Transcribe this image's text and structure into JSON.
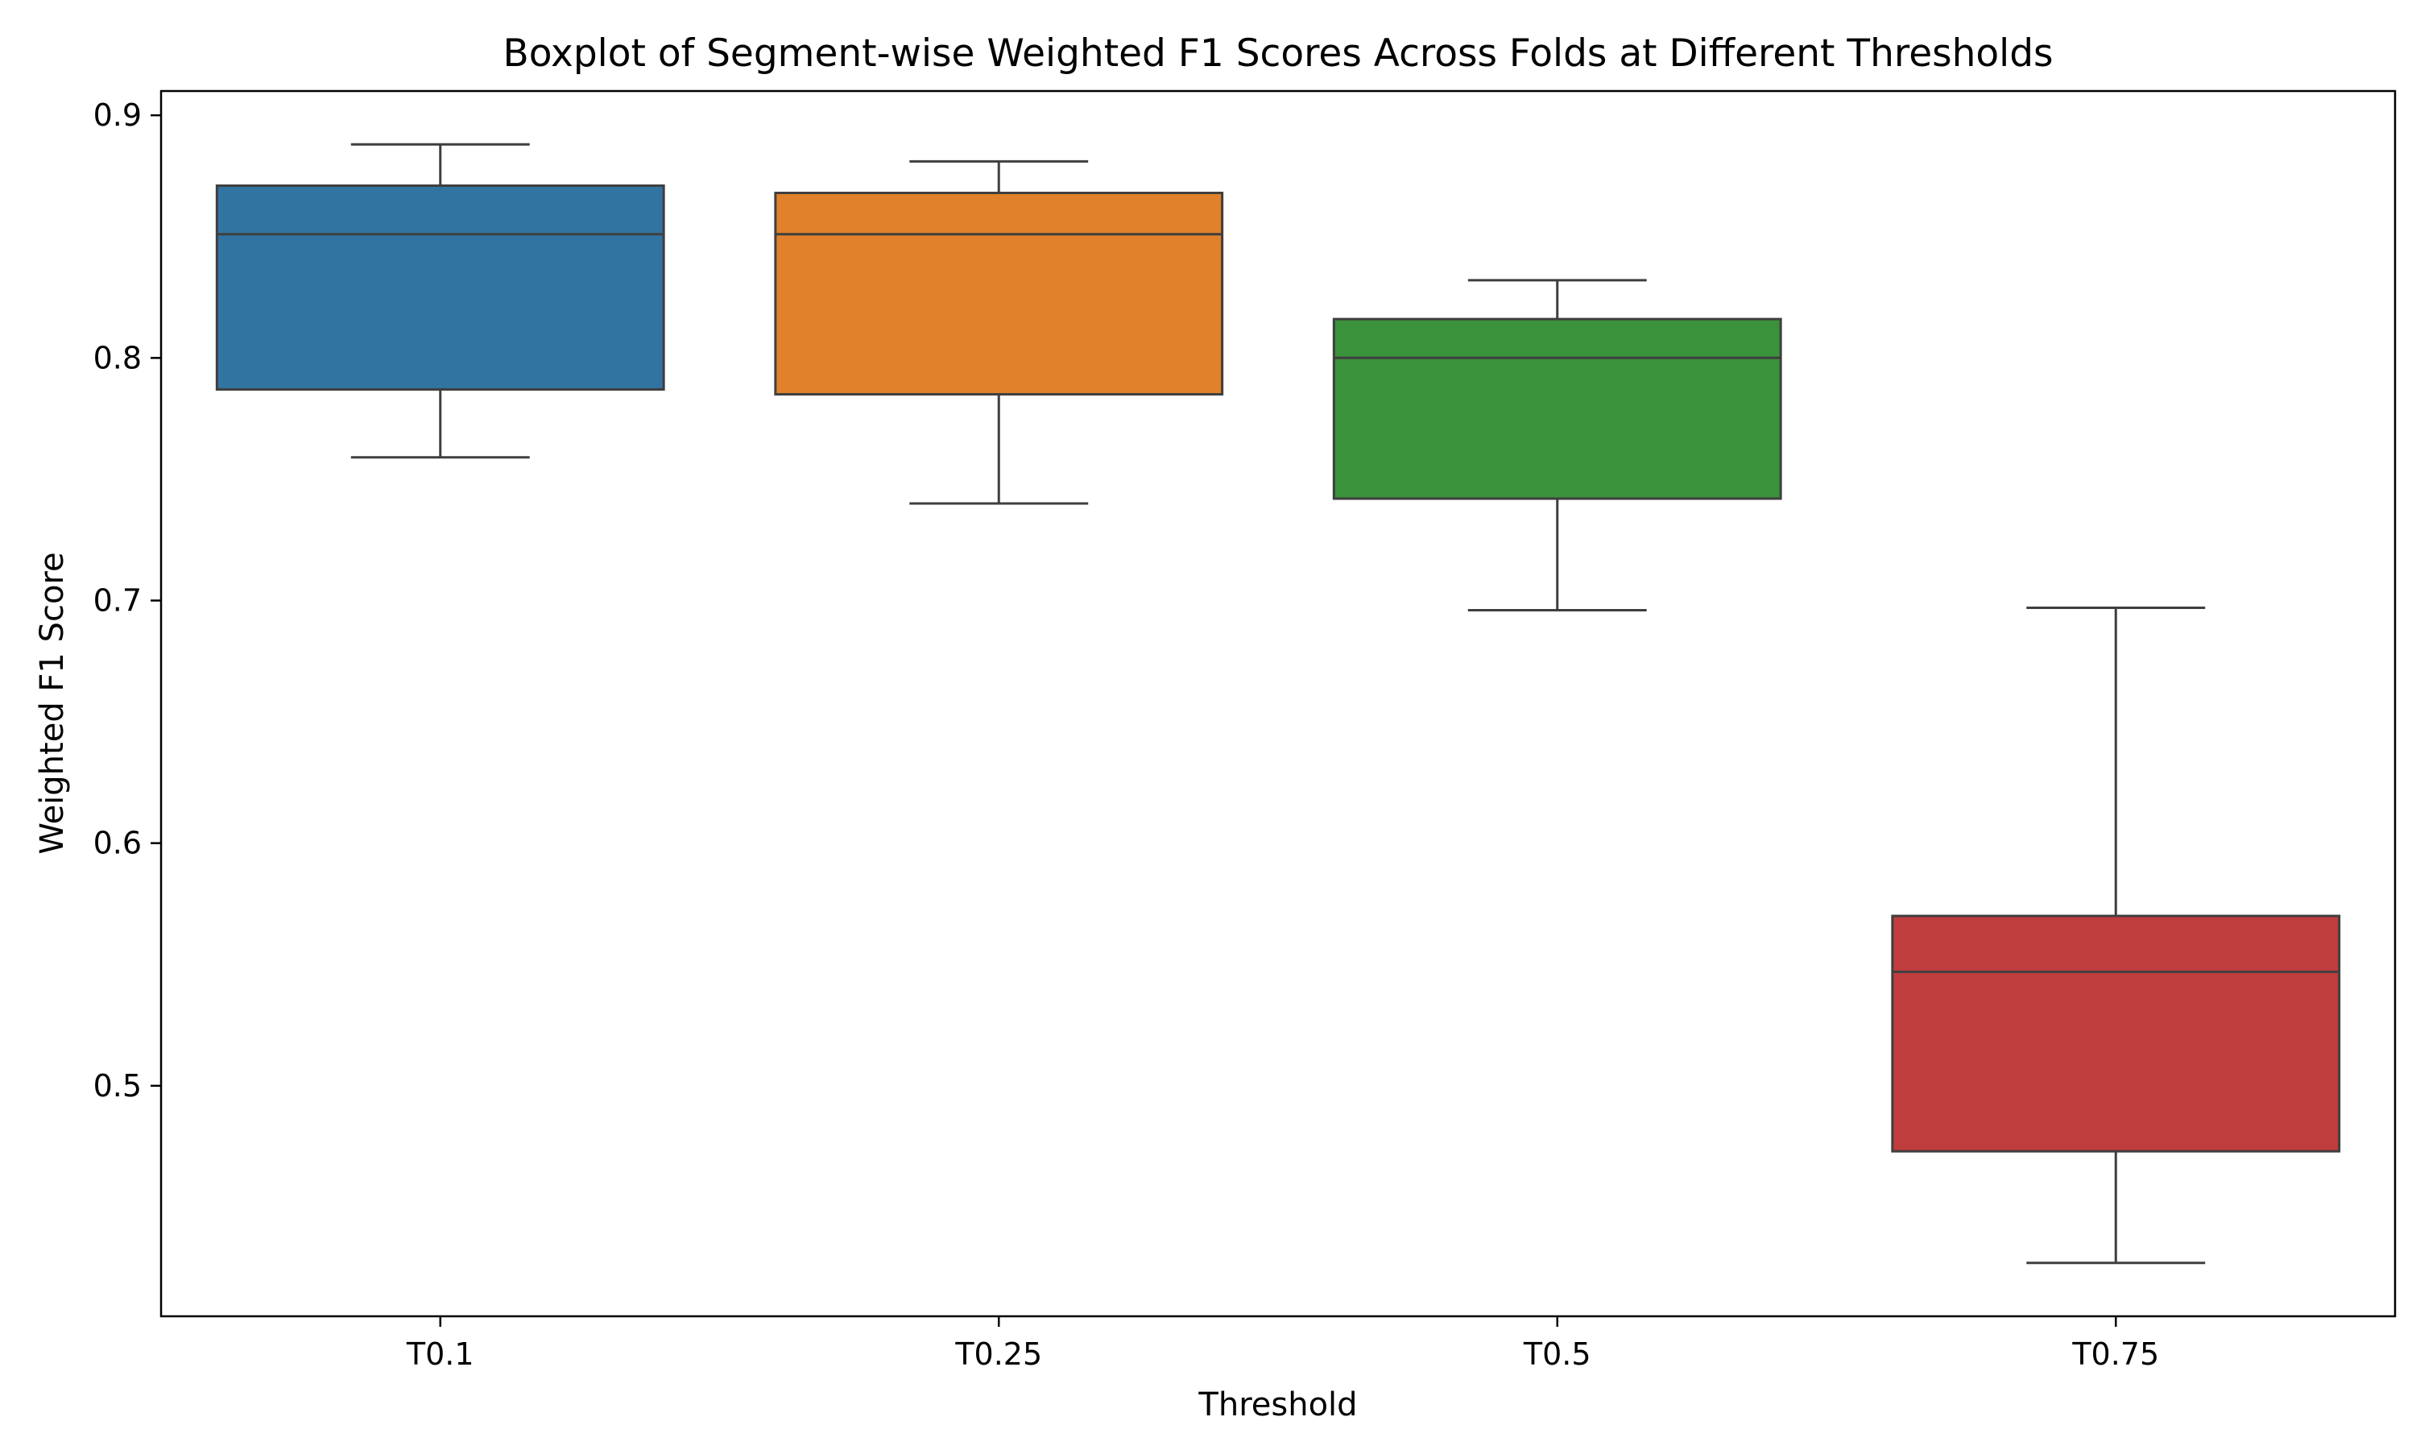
{
  "chart_data": {
    "type": "boxplot",
    "title": "Boxplot of Segment-wise Weighted F1 Scores Across Folds at Different Thresholds",
    "xlabel": "Threshold",
    "ylabel": "Weighted F1 Score",
    "ylim": [
      0.405,
      0.91
    ],
    "yticks": [
      0.5,
      0.6,
      0.7,
      0.8,
      0.9
    ],
    "ytick_labels": [
      "0.5",
      "0.6",
      "0.7",
      "0.8",
      "0.9"
    ],
    "grid": false,
    "legend": "none",
    "categories": [
      "T0.1",
      "T0.25",
      "T0.5",
      "T0.75"
    ],
    "boxes": [
      {
        "category": "T0.1",
        "whisker_low": 0.759,
        "q1": 0.787,
        "median": 0.851,
        "q3": 0.871,
        "whisker_high": 0.888,
        "color": "#3274a1"
      },
      {
        "category": "T0.25",
        "whisker_low": 0.74,
        "q1": 0.785,
        "median": 0.851,
        "q3": 0.868,
        "whisker_high": 0.881,
        "color": "#e1812c"
      },
      {
        "category": "T0.5",
        "whisker_low": 0.696,
        "q1": 0.742,
        "median": 0.8,
        "q3": 0.816,
        "whisker_high": 0.832,
        "color": "#3a923a"
      },
      {
        "category": "T0.75",
        "whisker_low": 0.427,
        "q1": 0.473,
        "median": 0.547,
        "q3": 0.57,
        "whisker_high": 0.697,
        "color": "#c03d3e"
      }
    ],
    "line_color": "#3f3f3f"
  }
}
